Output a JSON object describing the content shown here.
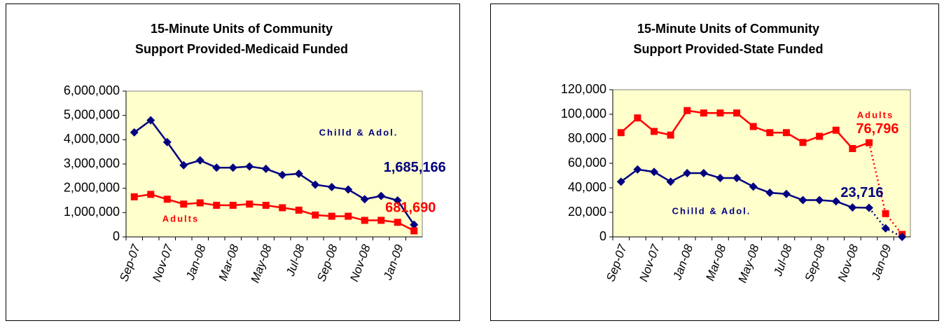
{
  "chart_data": [
    {
      "type": "line",
      "title": [
        "15-Minute Units of Community",
        "Support Provided-Medicaid Funded"
      ],
      "categories": [
        "Sep-07",
        null,
        "Nov-07",
        null,
        "Jan-08",
        null,
        "Mar-08",
        null,
        "May-08",
        null,
        "Jul-08",
        null,
        "Sep-08",
        null,
        "Nov-08",
        null,
        "Jan-09",
        null
      ],
      "ylim": [
        0,
        6000000
      ],
      "yticks": [
        0,
        {
          "value": 1000000,
          "label": "1,000,000"
        },
        {
          "value": 2000000,
          "label": "2,000,000"
        },
        {
          "value": 3000000,
          "label": "3,000,000"
        },
        {
          "value": 4000000,
          "label": "4,000,000"
        },
        {
          "value": 5000000,
          "label": "5,000,000"
        },
        {
          "value": 6000000,
          "label": "6,000,000"
        }
      ],
      "plot_background": "#ffffcc",
      "series": [
        {
          "name": "Chilld & Adol.",
          "color": "#000080",
          "marker": "diamond",
          "values": [
            4300000,
            4800000,
            3900000,
            2950000,
            3150000,
            2850000,
            2850000,
            2900000,
            2800000,
            2550000,
            2600000,
            2150000,
            2050000,
            1950000,
            1550000,
            1685166,
            1500000,
            500000
          ],
          "value_labels": [
            null,
            null,
            null,
            null,
            null,
            null,
            null,
            null,
            null,
            null,
            null,
            null,
            null,
            null,
            null,
            "1,685,166",
            null,
            null
          ]
        },
        {
          "name": "Adults",
          "color": "#ff0000",
          "marker": "square",
          "values": [
            1650000,
            1750000,
            1550000,
            1350000,
            1400000,
            1300000,
            1300000,
            1350000,
            1300000,
            1200000,
            1100000,
            900000,
            850000,
            850000,
            680000,
            681690,
            600000,
            250000
          ],
          "value_labels": [
            null,
            null,
            null,
            null,
            null,
            null,
            null,
            null,
            null,
            null,
            null,
            null,
            null,
            null,
            null,
            "681,690",
            null,
            null
          ]
        }
      ]
    },
    {
      "type": "line",
      "title": [
        "15-Minute Units of Community",
        "Support Provided-State Funded"
      ],
      "categories": [
        "Sep-07",
        null,
        "Nov-07",
        null,
        "Jan-08",
        null,
        "Mar-08",
        null,
        "May-08",
        null,
        "Jul-08",
        null,
        "Sep-08",
        null,
        "Nov-08",
        null,
        "Jan-09",
        null
      ],
      "ylim": [
        0,
        120000
      ],
      "yticks": [
        0,
        {
          "value": 20000,
          "label": "20,000"
        },
        {
          "value": 40000,
          "label": "40,000"
        },
        {
          "value": 60000,
          "label": "60,000"
        },
        {
          "value": 80000,
          "label": "80,000"
        },
        {
          "value": 100000,
          "label": "100,000"
        },
        {
          "value": 120000,
          "label": "120,000"
        }
      ],
      "plot_background": "#ffffcc",
      "series": [
        {
          "name": "Adults",
          "color": "#ff0000",
          "marker": "square",
          "dotted_from": 15,
          "values": [
            85000,
            97000,
            86000,
            83000,
            103000,
            101000,
            101000,
            101000,
            90000,
            85000,
            85000,
            77000,
            82000,
            87000,
            72000,
            76796,
            19000,
            2000
          ],
          "value_labels": [
            null,
            null,
            null,
            null,
            null,
            null,
            null,
            null,
            null,
            null,
            null,
            null,
            null,
            null,
            null,
            "76,796",
            null,
            null
          ]
        },
        {
          "name": "Chilld & Adol.",
          "color": "#000080",
          "marker": "diamond",
          "dotted_from": 15,
          "values": [
            45000,
            55000,
            53000,
            45000,
            52000,
            52000,
            48000,
            48000,
            41000,
            36000,
            35000,
            30000,
            30000,
            29000,
            24000,
            23716,
            7000,
            0
          ],
          "value_labels": [
            null,
            null,
            null,
            null,
            null,
            null,
            null,
            null,
            null,
            null,
            null,
            null,
            null,
            null,
            null,
            "23,716",
            null,
            null
          ]
        }
      ]
    }
  ]
}
